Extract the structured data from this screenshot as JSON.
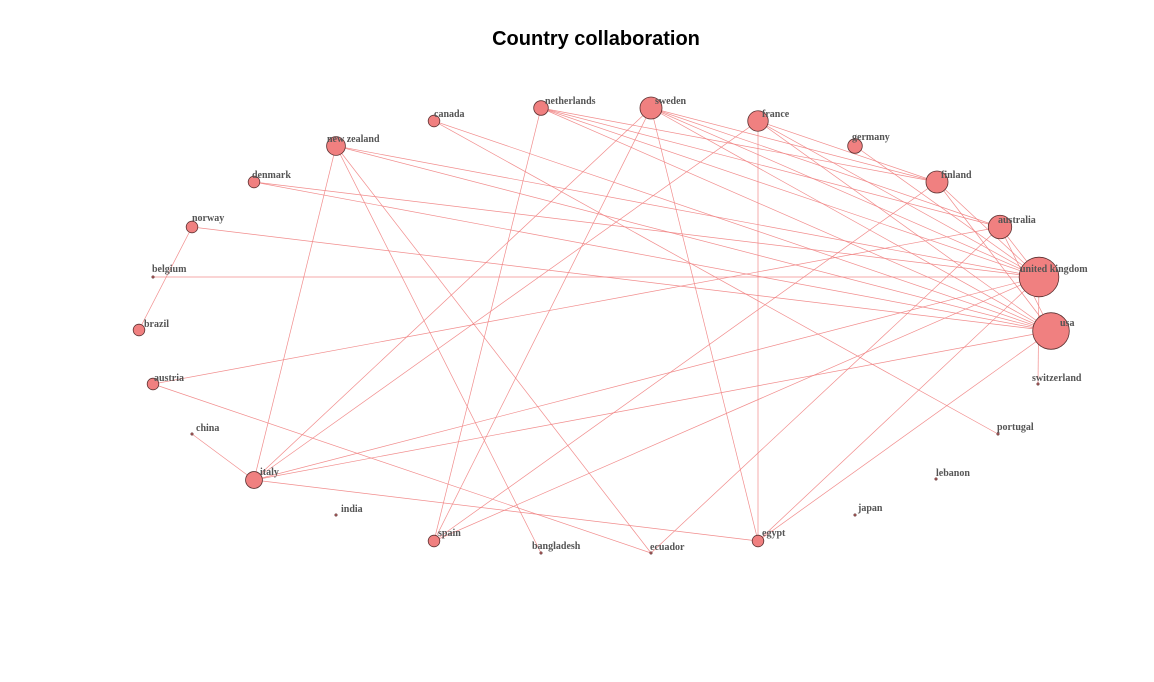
{
  "title": "Country collaboration",
  "colors": {
    "edge": "#f08080",
    "node_fill": "#f08080",
    "node_stroke": "#5a3030",
    "label": "#555555"
  },
  "nodes": [
    {
      "id": "netherlands",
      "label": "netherlands",
      "weight": 2
    },
    {
      "id": "sweden",
      "label": "sweden",
      "weight": 6
    },
    {
      "id": "france",
      "label": "france",
      "weight": 5
    },
    {
      "id": "germany",
      "label": "germany",
      "weight": 2
    },
    {
      "id": "finland",
      "label": "finland",
      "weight": 6
    },
    {
      "id": "australia",
      "label": "australia",
      "weight": 7
    },
    {
      "id": "united_kingdom",
      "label": "united kingdom",
      "weight": 24
    },
    {
      "id": "usa",
      "label": "usa",
      "weight": 20
    },
    {
      "id": "switzerland",
      "label": "switzerland",
      "weight": 0
    },
    {
      "id": "portugal",
      "label": "portugal",
      "weight": 0
    },
    {
      "id": "lebanon",
      "label": "lebanon",
      "weight": 0
    },
    {
      "id": "japan",
      "label": "japan",
      "weight": 0
    },
    {
      "id": "egypt",
      "label": "egypt",
      "weight": 1
    },
    {
      "id": "ecuador",
      "label": "ecuador",
      "weight": 0
    },
    {
      "id": "bangladesh",
      "label": "bangladesh",
      "weight": 0
    },
    {
      "id": "spain",
      "label": "spain",
      "weight": 1
    },
    {
      "id": "india",
      "label": "india",
      "weight": 0
    },
    {
      "id": "italy",
      "label": "italy",
      "weight": 3
    },
    {
      "id": "china",
      "label": "china",
      "weight": 0
    },
    {
      "id": "austria",
      "label": "austria",
      "weight": 1
    },
    {
      "id": "brazil",
      "label": "brazil",
      "weight": 1
    },
    {
      "id": "belgium",
      "label": "belgium",
      "weight": 0
    },
    {
      "id": "norway",
      "label": "norway",
      "weight": 1
    },
    {
      "id": "denmark",
      "label": "denmark",
      "weight": 1
    },
    {
      "id": "new_zealand",
      "label": "new zealand",
      "weight": 4
    },
    {
      "id": "canada",
      "label": "canada",
      "weight": 1
    }
  ],
  "edges": [
    [
      "netherlands",
      "finland"
    ],
    [
      "netherlands",
      "united_kingdom"
    ],
    [
      "netherlands",
      "usa"
    ],
    [
      "netherlands",
      "australia"
    ],
    [
      "netherlands",
      "spain"
    ],
    [
      "sweden",
      "finland"
    ],
    [
      "sweden",
      "australia"
    ],
    [
      "sweden",
      "united_kingdom"
    ],
    [
      "sweden",
      "usa"
    ],
    [
      "sweden",
      "egypt"
    ],
    [
      "sweden",
      "spain"
    ],
    [
      "sweden",
      "italy"
    ],
    [
      "france",
      "finland"
    ],
    [
      "france",
      "united_kingdom"
    ],
    [
      "france",
      "usa"
    ],
    [
      "france",
      "egypt"
    ],
    [
      "france",
      "italy"
    ],
    [
      "germany",
      "united_kingdom"
    ],
    [
      "finland",
      "united_kingdom"
    ],
    [
      "finland",
      "usa"
    ],
    [
      "finland",
      "spain"
    ],
    [
      "australia",
      "united_kingdom"
    ],
    [
      "australia",
      "usa"
    ],
    [
      "australia",
      "austria"
    ],
    [
      "australia",
      "ecuador"
    ],
    [
      "united_kingdom",
      "belgium"
    ],
    [
      "united_kingdom",
      "denmark"
    ],
    [
      "united_kingdom",
      "new_zealand"
    ],
    [
      "united_kingdom",
      "italy"
    ],
    [
      "united_kingdom",
      "spain"
    ],
    [
      "united_kingdom",
      "egypt"
    ],
    [
      "united_kingdom",
      "switzerland"
    ],
    [
      "usa",
      "norway"
    ],
    [
      "usa",
      "new_zealand"
    ],
    [
      "usa",
      "denmark"
    ],
    [
      "usa",
      "italy"
    ],
    [
      "usa",
      "egypt"
    ],
    [
      "usa",
      "canada"
    ],
    [
      "canada",
      "portugal"
    ],
    [
      "new_zealand",
      "italy"
    ],
    [
      "new_zealand",
      "bangladesh"
    ],
    [
      "new_zealand",
      "ecuador"
    ],
    [
      "norway",
      "brazil"
    ],
    [
      "austria",
      "ecuador"
    ],
    [
      "china",
      "italy"
    ],
    [
      "italy",
      "egypt"
    ]
  ]
}
